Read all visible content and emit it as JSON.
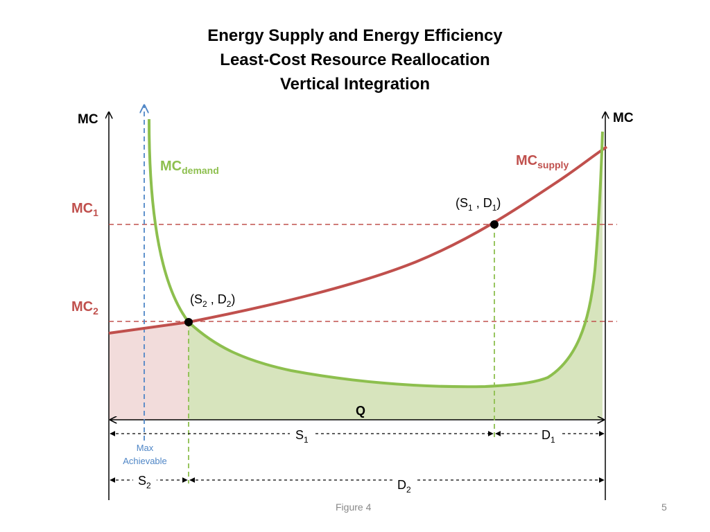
{
  "title": {
    "line1": "Energy Supply and Energy Efficiency",
    "line2": "Least-Cost Resource Reallocation",
    "line3": "Vertical Integration"
  },
  "axes": {
    "left_label": "MC",
    "right_label": "MC",
    "q_label": "Q"
  },
  "curves": {
    "demand": {
      "base": "MC",
      "sub": "demand",
      "color": "#8dbf4e"
    },
    "supply": {
      "base": "MC",
      "sub": "supply",
      "color": "#c0504d"
    }
  },
  "levels": {
    "mc1": {
      "base": "MC",
      "sub": "1"
    },
    "mc2": {
      "base": "MC",
      "sub": "2"
    }
  },
  "points": {
    "p1": {
      "open": "(S",
      "sub_a": "1",
      "mid": " , D",
      "sub_b": "1",
      "close": ")"
    },
    "p2": {
      "open": "(S",
      "sub_a": "2",
      "mid": " , D",
      "sub_b": "2",
      "close": ")"
    }
  },
  "spans": {
    "s1": {
      "base": "S",
      "sub": "1"
    },
    "d1": {
      "base": "D",
      "sub": "1"
    },
    "s2": {
      "base": "S",
      "sub": "2"
    },
    "d2": {
      "base": "D",
      "sub": "2"
    }
  },
  "max_achievable": {
    "line1": "Max",
    "line2": "Achievable",
    "color": "#4f86c6"
  },
  "footer": {
    "caption": "Figure 4",
    "page": "5"
  },
  "colors": {
    "green_fill": "#d7e4bd",
    "red_fill": "#f2dcdb",
    "text_red": "#c0504d",
    "text_green": "#8dbf4e"
  }
}
